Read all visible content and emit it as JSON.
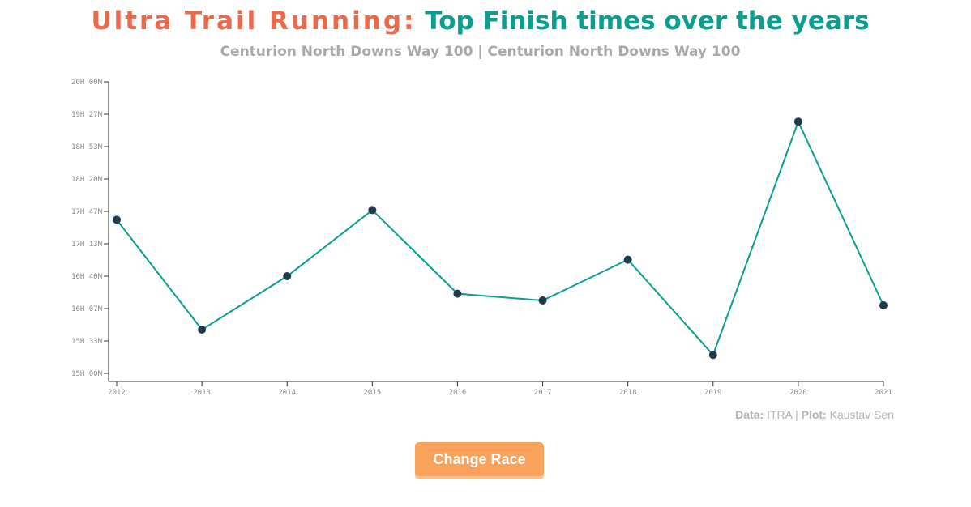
{
  "header": {
    "title_part1": "Ultra Trail Running:",
    "title_part2": "Top Finish times over the years",
    "subtitle": "Centurion North Downs Way 100 | Centurion North Downs Way 100"
  },
  "colors": {
    "title_accent": "#ec6a4c",
    "title_main": "#0a9e8e",
    "line": "#0a9e8e",
    "point": "#1f3b4a",
    "button": "#f8a25b"
  },
  "chart_data": {
    "type": "line",
    "title": "",
    "xlabel": "",
    "ylabel": "",
    "x": [
      "2012",
      "2013",
      "2014",
      "2015",
      "2016",
      "2017",
      "2018",
      "2019",
      "2020",
      "2021"
    ],
    "ylim_minutes": [
      900,
      1200
    ],
    "y_ticks": [
      "15H 00M",
      "15H 33M",
      "16H 07M",
      "16H 40M",
      "17H 13M",
      "17H 47M",
      "18H 20M",
      "18H 53M",
      "19H 27M",
      "20H 00M"
    ],
    "series": [
      {
        "values_minutes": [
          1058,
          945,
          1000,
          1068,
          982,
          975,
          1017,
          919,
          1159,
          970
        ]
      }
    ],
    "grid": false,
    "legend": "none"
  },
  "credit": {
    "data_label": "Data:",
    "data_value": "ITRA",
    "separator": "|",
    "plot_label": "Plot:",
    "plot_value": "Kaustav Sen"
  },
  "button": {
    "label": "Change Race"
  }
}
